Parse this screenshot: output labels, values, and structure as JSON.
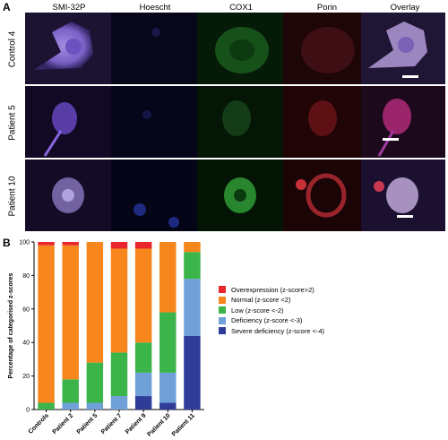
{
  "panel_a": {
    "letter": "A",
    "columns": [
      "SMI-32P",
      "Hoescht",
      "COX1",
      "Porin",
      "Overlay"
    ],
    "rows": [
      "Control 4",
      "Patient 5",
      "Patient 10"
    ]
  },
  "panel_b": {
    "letter": "B"
  },
  "colors": {
    "overexpression": "#e8262b",
    "normal": "#f7861d",
    "low": "#3bb44a",
    "deficiency": "#6fa0d8",
    "severe": "#2f3d99"
  },
  "chart_data": {
    "type": "bar",
    "stacked": true,
    "ylabel": "Percentage of categorised z-scores",
    "ylim": [
      0,
      100
    ],
    "yticks": [
      0,
      20,
      40,
      60,
      80,
      100
    ],
    "categories": [
      "Controls",
      "Patient 2",
      "Patient 5",
      "Patient 7",
      "Patient 9",
      "Patient 10",
      "Patient 11"
    ],
    "legend_position": "right",
    "series": [
      {
        "name": "Severe deficiency (z-score <-4)",
        "color_key": "severe",
        "values": [
          0,
          0,
          0,
          0,
          8,
          4,
          44
        ]
      },
      {
        "name": "Deficiency (z-score <-3)",
        "color_key": "deficiency",
        "values": [
          0,
          4,
          4,
          8,
          14,
          18,
          34
        ]
      },
      {
        "name": "Low (z-score <-2)",
        "color_key": "low",
        "values": [
          4,
          14,
          24,
          26,
          18,
          36,
          16
        ]
      },
      {
        "name": "Normal (z-score <2)",
        "color_key": "normal",
        "values": [
          94,
          80,
          72,
          62,
          56,
          42,
          6
        ]
      },
      {
        "name": "Overexpression (z-score>2)",
        "color_key": "overexpression",
        "values": [
          2,
          2,
          0,
          4,
          4,
          0,
          0
        ]
      }
    ],
    "legend_order": [
      "Overexpression (z-score>2)",
      "Normal (z-score <2)",
      "Low (z-score <-2)",
      "Deficiency (z-score <-3)",
      "Severe deficiency (z-score <-4)"
    ]
  }
}
